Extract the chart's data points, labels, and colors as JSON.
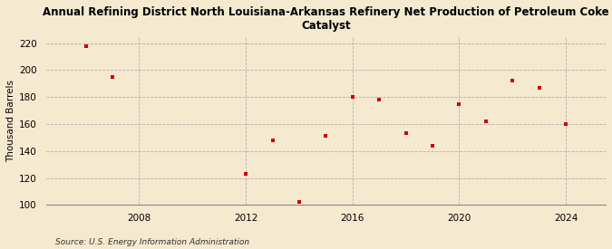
{
  "title": "Annual Refining District North Louisiana-Arkansas Refinery Net Production of Petroleum Coke\nCatalyst",
  "ylabel": "Thousand Barrels",
  "source": "Source: U.S. Energy Information Administration",
  "years": [
    2006,
    2007,
    2012,
    2013,
    2014,
    2015,
    2016,
    2017,
    2018,
    2019,
    2020,
    2021,
    2022,
    2023,
    2024
  ],
  "values": [
    218,
    195,
    123,
    148,
    102,
    151,
    180,
    178,
    153,
    144,
    175,
    162,
    192,
    187,
    160
  ],
  "marker_color": "#cc0000",
  "marker": "s",
  "marker_size": 3.5,
  "xlim": [
    2004.5,
    2025.5
  ],
  "ylim": [
    100,
    225
  ],
  "yticks": [
    100,
    120,
    140,
    160,
    180,
    200,
    220
  ],
  "xticks": [
    2008,
    2012,
    2016,
    2020,
    2024
  ],
  "grid_color": "#aaaaaa",
  "background_color": "#f5e9d0",
  "title_fontsize": 8.5,
  "label_fontsize": 7.5,
  "tick_fontsize": 7.5,
  "source_fontsize": 6.5
}
